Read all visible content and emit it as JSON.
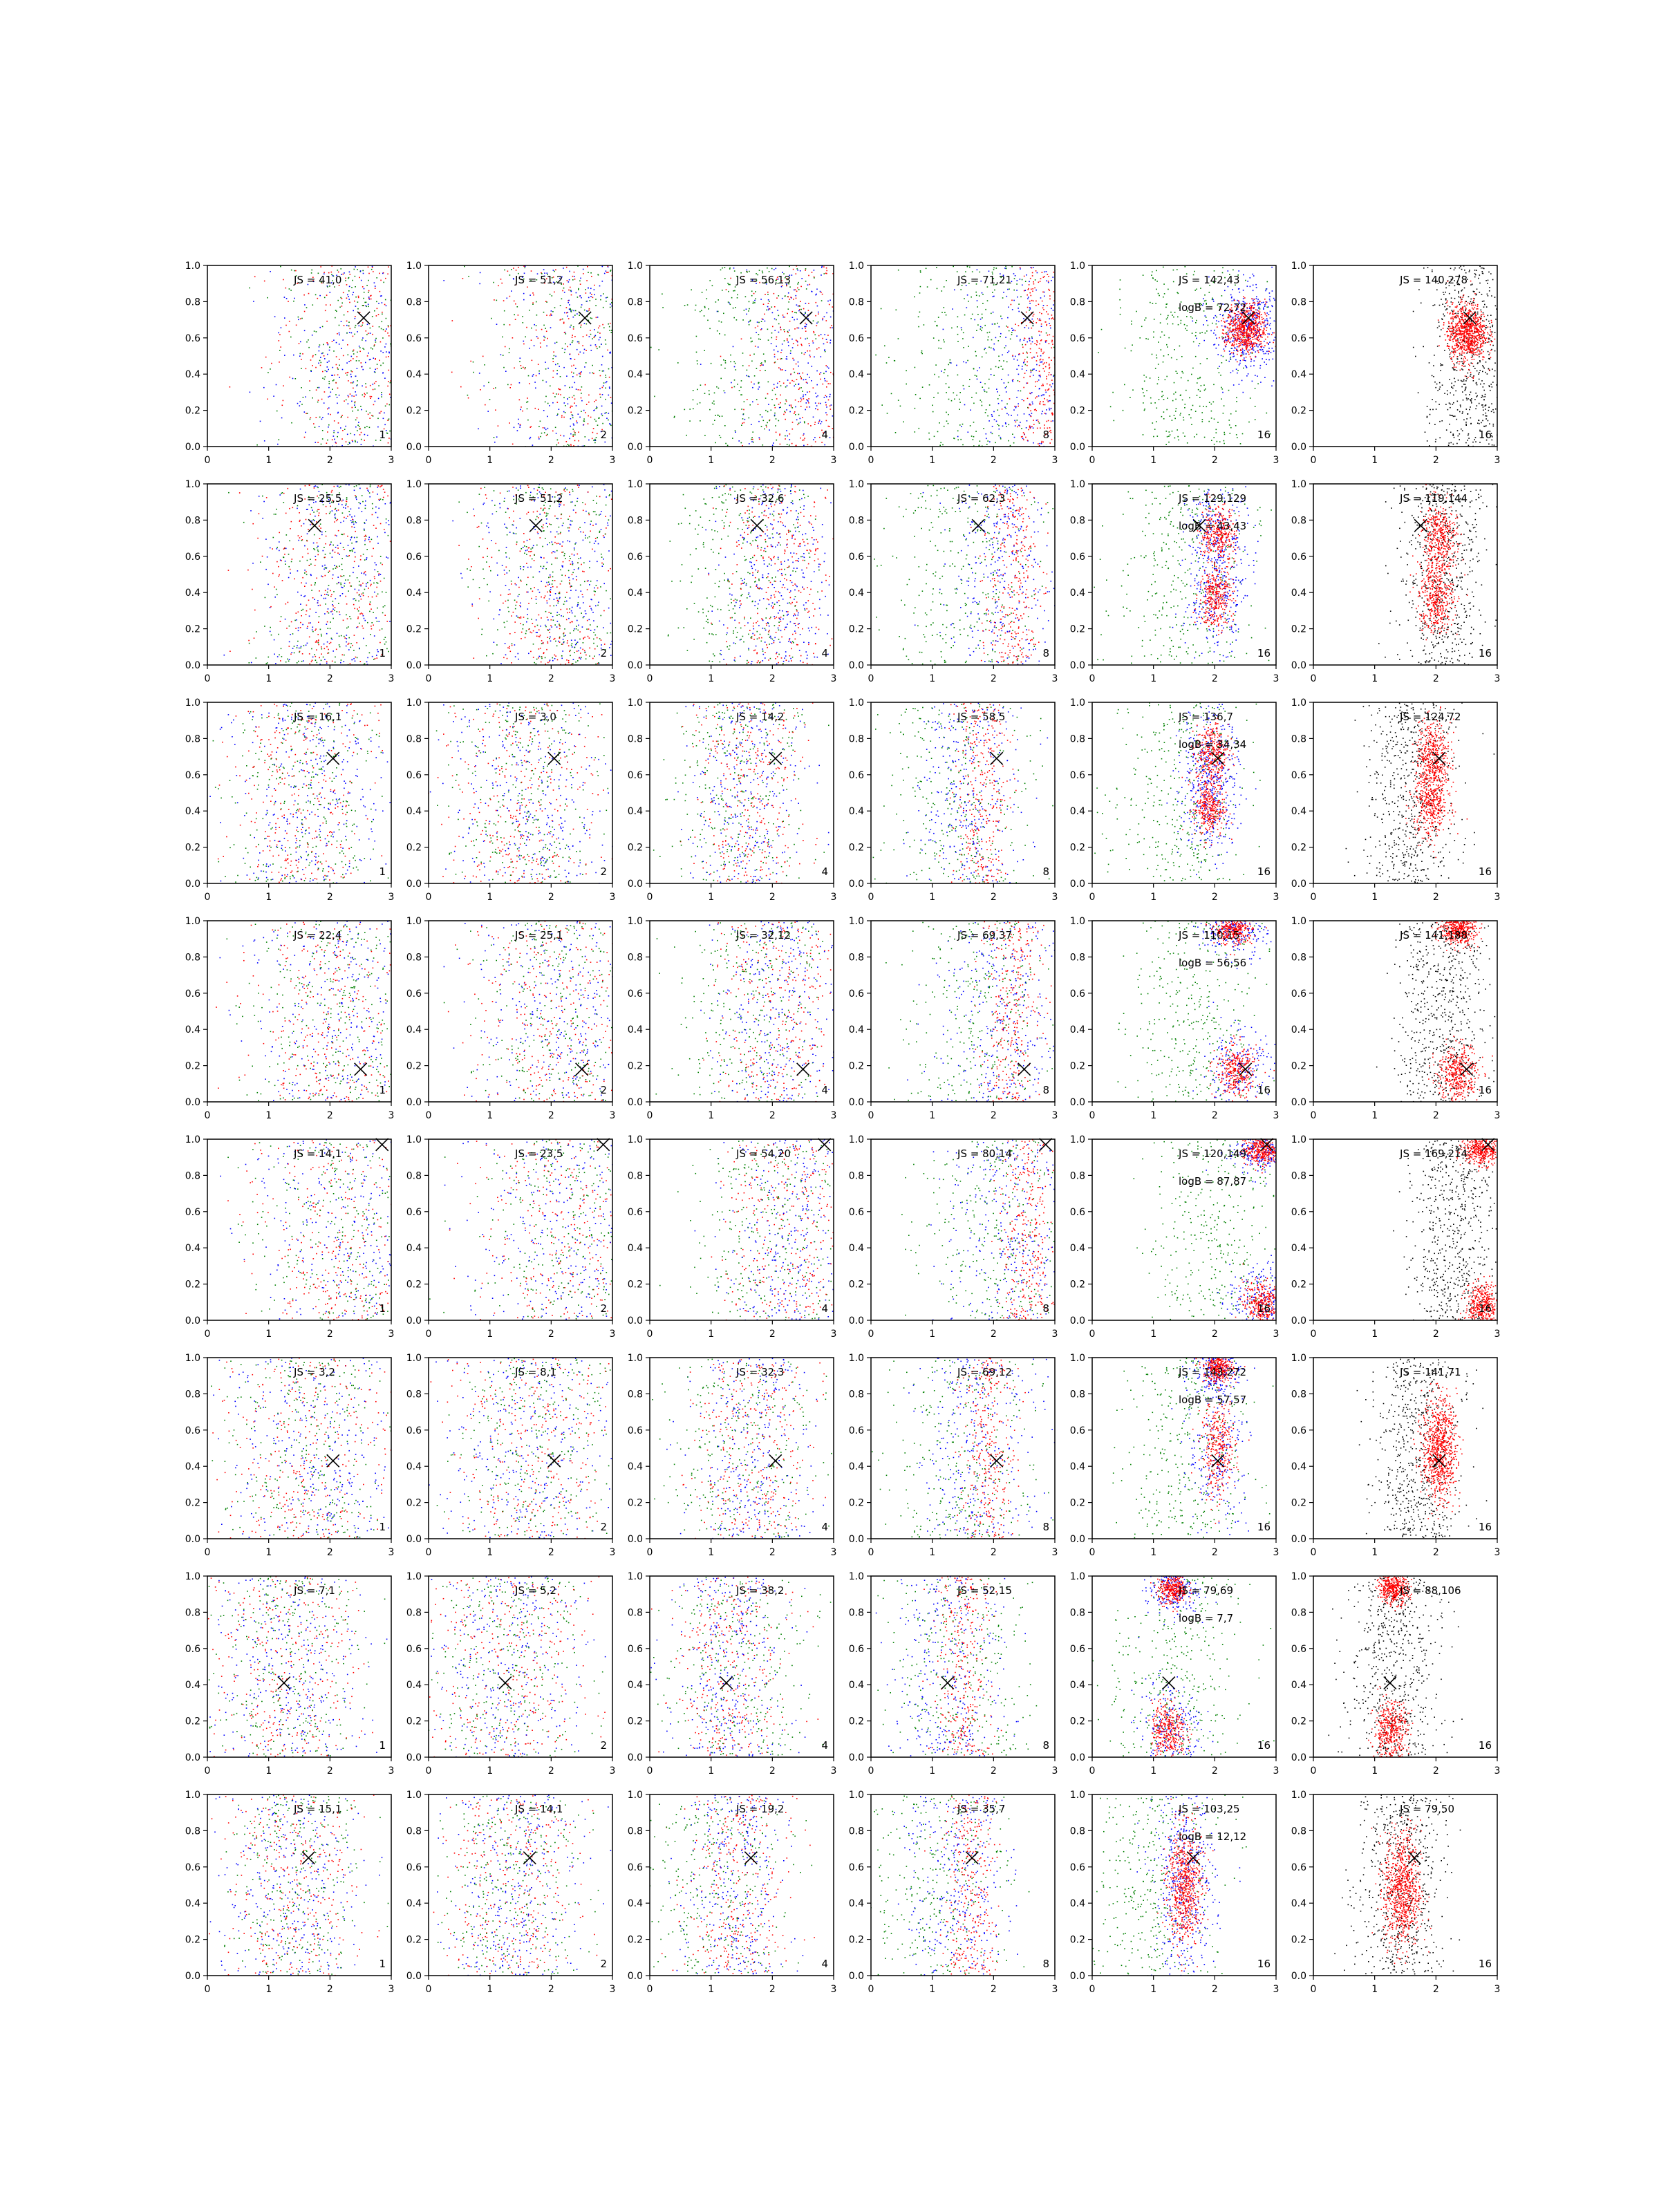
{
  "chart_data": {
    "type": "scatter",
    "layout": {
      "rows": 8,
      "cols": 6
    },
    "xlim": [
      0,
      3
    ],
    "ylim": [
      0,
      1
    ],
    "x_ticks": [
      "0",
      "1",
      "2",
      "3"
    ],
    "y_ticks": [
      "0.0",
      "0.2",
      "0.4",
      "0.6",
      "0.8",
      "1.0"
    ],
    "grid": false,
    "point_colors": {
      "blue": "#0000ff",
      "green": "#008000",
      "red": "#ff0000",
      "black": "#000000"
    },
    "column_counts": [
      "1",
      "2",
      "4",
      "8",
      "16",
      "16"
    ],
    "rows": [
      {
        "marker": [
          2.55,
          0.71
        ],
        "js": [
          "JS = 41,0",
          "JS = 51,2",
          "JS = 56,13",
          "JS = 71,21",
          "JS = 142,43",
          "JS = 140,278"
        ],
        "logb": "logB = 72,72",
        "cluster": {
          "cx": 2.55,
          "sx": 0.55,
          "cy": 0.5,
          "sy": 0.35,
          "t5": [
            [
              2.5,
              0.65,
              0.16,
              0.07
            ]
          ],
          "t6": [
            [
              2.5,
              0.63,
              0.16,
              0.08
            ]
          ],
          "green": [
            1.6,
            0.7
          ]
        }
      },
      {
        "marker": [
          1.75,
          0.77
        ],
        "js": [
          "JS = 25,5",
          "JS = 51,2",
          "JS = 32,6",
          "JS = 62,3",
          "JS = 129,129",
          "JS = 119,144"
        ],
        "logb": "logB = 43,43",
        "cluster": {
          "cx": 2.1,
          "sx": 0.45,
          "cy": 0.5,
          "sy": 0.35,
          "t5": [
            [
              2.05,
              0.72,
              0.14,
              0.08
            ],
            [
              2.0,
              0.38,
              0.14,
              0.08
            ]
          ],
          "t6": [
            [
              2.05,
              0.7,
              0.14,
              0.1
            ],
            [
              2.0,
              0.38,
              0.14,
              0.1
            ]
          ],
          "green": [
            1.5,
            0.6
          ]
        }
      },
      {
        "marker": [
          2.05,
          0.69
        ],
        "js": [
          "JS = 16,1",
          "JS = 3,0",
          "JS = 14,2",
          "JS = 58,5",
          "JS = 136,7",
          "JS = 124,72"
        ],
        "logb": "logB = 34,34",
        "cluster": {
          "cx": 1.6,
          "sx": 0.45,
          "cy": 0.5,
          "sy": 0.35,
          "t5": [
            [
              1.95,
              0.72,
              0.13,
              0.08
            ],
            [
              1.9,
              0.42,
              0.13,
              0.08
            ]
          ],
          "t6": [
            [
              1.95,
              0.7,
              0.14,
              0.1
            ],
            [
              1.9,
              0.45,
              0.14,
              0.1
            ]
          ],
          "green": [
            1.4,
            0.6
          ]
        }
      },
      {
        "marker": [
          2.5,
          0.18
        ],
        "js": [
          "JS = 22,4",
          "JS = 25,1",
          "JS = 32,12",
          "JS = 69,37",
          "JS = 110,15",
          "JS = 141,188"
        ],
        "logb": "logB = 56,56",
        "cluster": {
          "cx": 2.1,
          "sx": 0.5,
          "cy": 0.5,
          "sy": 0.35,
          "t5": [
            [
              2.35,
              0.17,
              0.17,
              0.07
            ],
            [
              2.3,
              0.95,
              0.15,
              0.04
            ]
          ],
          "t6": [
            [
              2.35,
              0.16,
              0.17,
              0.08
            ],
            [
              2.35,
              0.95,
              0.14,
              0.04
            ]
          ],
          "green": [
            1.7,
            0.6
          ]
        }
      },
      {
        "marker": [
          2.85,
          0.97
        ],
        "js": [
          "JS = 14,1",
          "JS = 23,5",
          "JS = 54,20",
          "JS = 80,14",
          "JS = 120,149",
          "JS = 169,214"
        ],
        "logb": "logB = 87,87",
        "cluster": {
          "cx": 2.3,
          "sx": 0.55,
          "cy": 0.5,
          "sy": 0.35,
          "t5": [
            [
              2.75,
              0.94,
              0.15,
              0.04
            ],
            [
              2.75,
              0.1,
              0.15,
              0.06
            ]
          ],
          "t6": [
            [
              2.75,
              0.94,
              0.15,
              0.04
            ],
            [
              2.75,
              0.08,
              0.14,
              0.06
            ]
          ],
          "green": [
            2.0,
            0.5
          ]
        }
      },
      {
        "marker": [
          2.05,
          0.43
        ],
        "js": [
          "JS = 3,2",
          "JS = 8,1",
          "JS = 32,3",
          "JS = 69,12",
          "JS = 143,272",
          "JS = 141,71"
        ],
        "logb": "logB = 57,57",
        "cluster": {
          "cx": 1.7,
          "sx": 0.5,
          "cy": 0.5,
          "sy": 0.35,
          "t5": [
            [
              2.05,
              0.5,
              0.14,
              0.14
            ],
            [
              2.05,
              0.95,
              0.12,
              0.04
            ]
          ],
          "t6": [
            [
              2.05,
              0.5,
              0.14,
              0.14
            ]
          ],
          "green": [
            1.5,
            0.6
          ]
        }
      },
      {
        "marker": [
          1.25,
          0.41
        ],
        "js": [
          "JS = 7,1",
          "JS = 5,2",
          "JS = 38,2",
          "JS = 52,15",
          "JS = 79,69",
          "JS = 88,106"
        ],
        "logb": "logB = 7,7",
        "cluster": {
          "cx": 1.3,
          "sx": 0.45,
          "cy": 0.5,
          "sy": 0.35,
          "t5": [
            [
              1.25,
              0.15,
              0.14,
              0.08
            ],
            [
              1.3,
              0.93,
              0.12,
              0.04
            ]
          ],
          "t6": [
            [
              1.25,
              0.15,
              0.14,
              0.08
            ],
            [
              1.3,
              0.93,
              0.12,
              0.04
            ]
          ],
          "green": [
            1.4,
            0.6
          ]
        }
      },
      {
        "marker": [
          1.65,
          0.65
        ],
        "js": [
          "JS = 15,1",
          "JS = 14,1",
          "JS = 19,2",
          "JS = 35,7",
          "JS = 103,25",
          "JS = 79,50"
        ],
        "logb": "logB = 12,12",
        "cluster": {
          "cx": 1.4,
          "sx": 0.4,
          "cy": 0.5,
          "sy": 0.35,
          "t5": [
            [
              1.5,
              0.5,
              0.14,
              0.16
            ]
          ],
          "t6": [
            [
              1.45,
              0.48,
              0.15,
              0.16
            ]
          ],
          "green": [
            1.0,
            0.6
          ]
        }
      }
    ]
  }
}
